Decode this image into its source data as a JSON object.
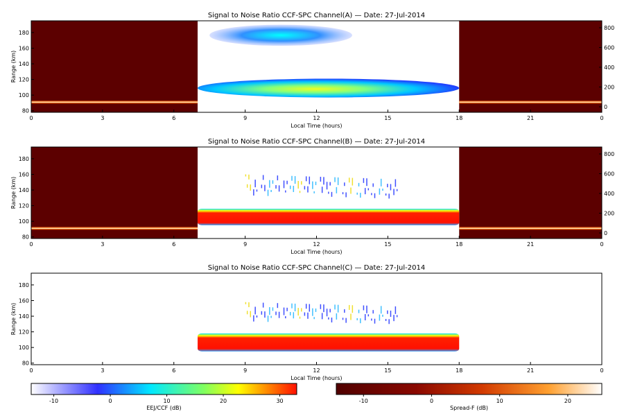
{
  "chart_data": [
    {
      "type": "heatmap",
      "title": "Signal to Noise Ratio CCF-SPC Channel(A) — Date: 27-Jul-2014",
      "xlabel": "Local Time (hours)",
      "ylabel": "Range (km)",
      "xlim": [
        0,
        24
      ],
      "ylim": [
        78,
        195
      ],
      "x_ticks": [
        "0",
        "3",
        "6",
        "9",
        "12",
        "15",
        "18",
        "21",
        "0"
      ],
      "y_ticks": [
        "80",
        "100",
        "120",
        "140",
        "160",
        "180"
      ],
      "y2_ticks": [
        "0",
        "200",
        "400",
        "600",
        "800"
      ],
      "night_panels": [
        {
          "x_start": 0,
          "x_end": 7,
          "scale": "Spread-F (dB)",
          "bright_layer_km": 91
        },
        {
          "x_start": 18,
          "x_end": 24,
          "scale": "Spread-F (dB)",
          "bright_layer_km": 91
        }
      ],
      "day_echoes": [
        {
          "label": "lower echo",
          "time_start": 7,
          "time_end": 18,
          "range_bottom_km": 97,
          "range_top_km": 121,
          "peak_snr_db": 18
        },
        {
          "label": "upper echo",
          "time_start": 7.5,
          "time_end": 13.5,
          "range_bottom_km": 163,
          "range_top_km": 190,
          "peak_snr_db": 4
        }
      ]
    },
    {
      "type": "heatmap",
      "title": "Signal to Noise Ratio CCF-SPC Channel(B) — Date: 27-Jul-2014",
      "xlabel": "Local Time (hours)",
      "ylabel": "Range (km)",
      "xlim": [
        0,
        24
      ],
      "ylim": [
        78,
        195
      ],
      "x_ticks": [
        "0",
        "3",
        "6",
        "9",
        "12",
        "15",
        "18",
        "21",
        "0"
      ],
      "y_ticks": [
        "80",
        "100",
        "120",
        "140",
        "160",
        "180"
      ],
      "y2_ticks": [
        "0",
        "200",
        "400",
        "600",
        "800"
      ],
      "night_panels": [
        {
          "x_start": 0,
          "x_end": 7,
          "scale": "Spread-F (dB)",
          "bright_layer_km": 91
        },
        {
          "x_start": 18,
          "x_end": 24,
          "scale": "Spread-F (dB)",
          "bright_layer_km": 91
        }
      ],
      "day_echoes": [
        {
          "label": "EEJ layer",
          "time_start": 7,
          "time_end": 18,
          "range_bottom_km": 95,
          "range_top_km": 116,
          "peak_snr_db": 30
        },
        {
          "label": "upper echoes",
          "time_start": 9,
          "time_end": 15.5,
          "range_bottom_km": 135,
          "range_top_km": 160,
          "peak_snr_db": 15
        }
      ]
    },
    {
      "type": "heatmap",
      "title": "Signal to Noise Ratio CCF-SPC Channel(C) — Date: 27-Jul-2014",
      "xlabel": "Local Time (hours)",
      "ylabel": "Range (km)",
      "xlim": [
        0,
        24
      ],
      "ylim": [
        78,
        195
      ],
      "x_ticks": [
        "0",
        "3",
        "6",
        "9",
        "12",
        "15",
        "18",
        "21",
        "0"
      ],
      "y_ticks": [
        "80",
        "100",
        "120",
        "140",
        "160",
        "180"
      ],
      "night_panels": [],
      "day_echoes": [
        {
          "label": "EEJ layer",
          "time_start": 7,
          "time_end": 18,
          "range_bottom_km": 95,
          "range_top_km": 118,
          "peak_snr_db": 30
        },
        {
          "label": "upper echoes",
          "time_start": 9,
          "time_end": 15.5,
          "range_bottom_km": 136,
          "range_top_km": 158,
          "peak_snr_db": 15
        }
      ]
    }
  ],
  "colorbars": [
    {
      "label": "EEJ/CCF (dB)",
      "ticks": [
        "-10",
        "0",
        "10",
        "20",
        "30"
      ],
      "range": [
        -14,
        33
      ],
      "colors": [
        "#ffffff",
        "#3030ff",
        "#00ffff",
        "#ffff00",
        "#ff0000"
      ]
    },
    {
      "label": "Spread-F (dB)",
      "ticks": [
        "-10",
        "0",
        "10",
        "20"
      ],
      "range": [
        -14,
        25
      ],
      "colors": [
        "#500000",
        "#b82000",
        "#ff7000",
        "#ffe0a0",
        "#ffffff"
      ]
    }
  ]
}
